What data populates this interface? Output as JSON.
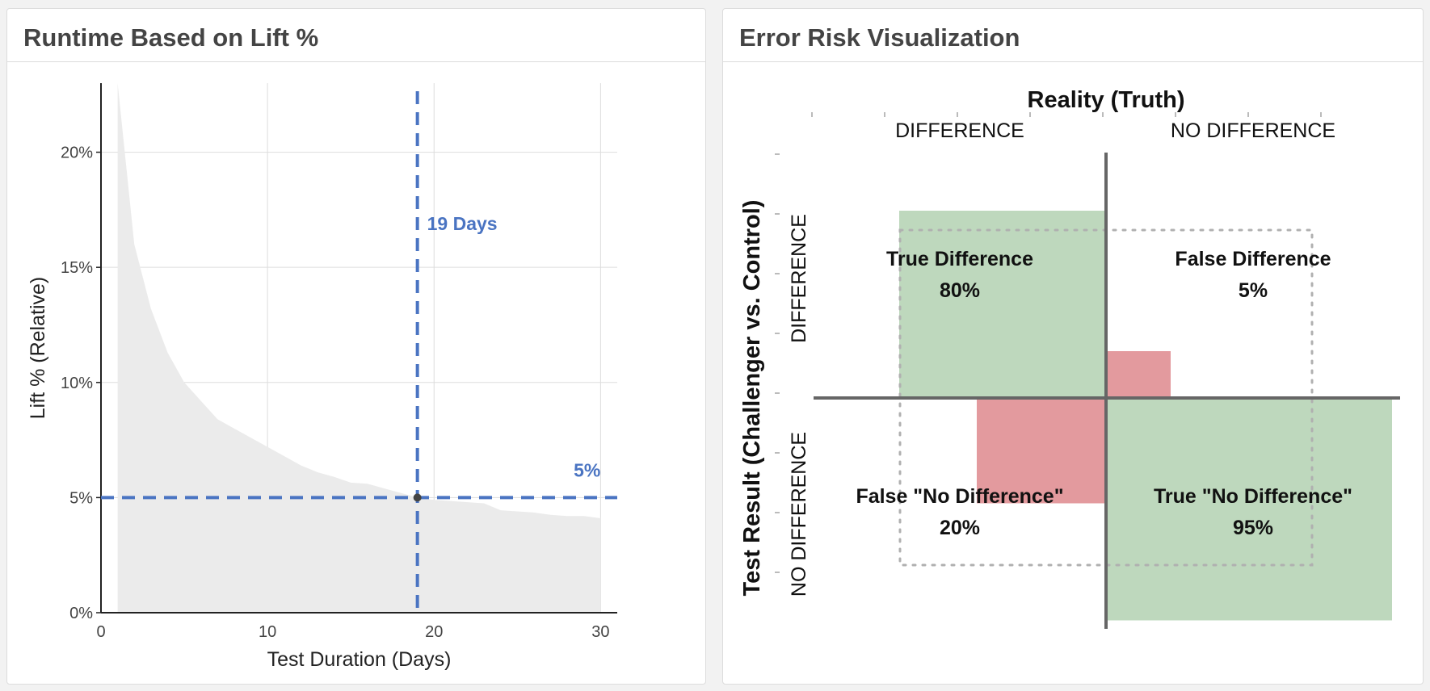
{
  "left_panel": {
    "title": "Runtime Based on Lift %"
  },
  "right_panel": {
    "title": "Error Risk Visualization"
  },
  "chart_data": [
    {
      "type": "area",
      "title": "Runtime Based on Lift %",
      "xlabel": "Test Duration (Days)",
      "ylabel": "Lift % (Relative)",
      "xlim": [
        0,
        31
      ],
      "ylim": [
        0,
        23
      ],
      "x_ticks": [
        0,
        10,
        20,
        30
      ],
      "x_tick_labels": [
        "0",
        "10",
        "20",
        "30"
      ],
      "y_ticks": [
        0,
        5,
        10,
        15,
        20
      ],
      "y_tick_labels": [
        "0%",
        "5%",
        "10%",
        "15%",
        "20%"
      ],
      "grid": true,
      "area_color": "#ebebeb",
      "accent_color": "#4a74c2",
      "series": [
        {
          "x": [
            1,
            2,
            3,
            4,
            5,
            6,
            7,
            8,
            9,
            10,
            11,
            12,
            13,
            14,
            15,
            16,
            17,
            18,
            19,
            20,
            21,
            22,
            23,
            24,
            25,
            26,
            27,
            28,
            29,
            30
          ],
          "values": [
            23.0,
            16.0,
            13.2,
            11.3,
            10.0,
            9.2,
            8.4,
            8.0,
            7.6,
            7.2,
            6.8,
            6.4,
            6.1,
            5.9,
            5.65,
            5.6,
            5.4,
            5.2,
            5.0,
            4.9,
            4.85,
            4.8,
            4.75,
            4.45,
            4.4,
            4.35,
            4.25,
            4.2,
            4.2,
            4.1
          ]
        }
      ],
      "reference": {
        "x": 19,
        "y": 5,
        "x_label": "19 Days",
        "y_label": "5%"
      }
    },
    {
      "type": "bar",
      "title": "Error Risk Visualization",
      "xlabel": "Reality (Truth)",
      "ylabel": "Test Result (Challenger vs. Control)",
      "column_labels": [
        "DIFFERENCE",
        "NO DIFFERENCE"
      ],
      "row_labels": [
        "DIFFERENCE",
        "NO DIFFERENCE"
      ],
      "correct_color": "#bed8bd",
      "error_color": "#e39a9e",
      "cells": [
        {
          "row": "DIFFERENCE",
          "column": "DIFFERENCE",
          "label": "True Difference",
          "percent_label": "80%",
          "value": 80,
          "kind": "correct"
        },
        {
          "row": "DIFFERENCE",
          "column": "NO DIFFERENCE",
          "label": "False Difference",
          "percent_label": "5%",
          "value": 5,
          "kind": "error"
        },
        {
          "row": "NO DIFFERENCE",
          "column": "DIFFERENCE",
          "label": "False \"No Difference\"",
          "percent_label": "20%",
          "value": 20,
          "kind": "error"
        },
        {
          "row": "NO DIFFERENCE",
          "column": "NO DIFFERENCE",
          "label": "True \"No Difference\"",
          "percent_label": "95%",
          "value": 95,
          "kind": "correct"
        }
      ]
    }
  ]
}
